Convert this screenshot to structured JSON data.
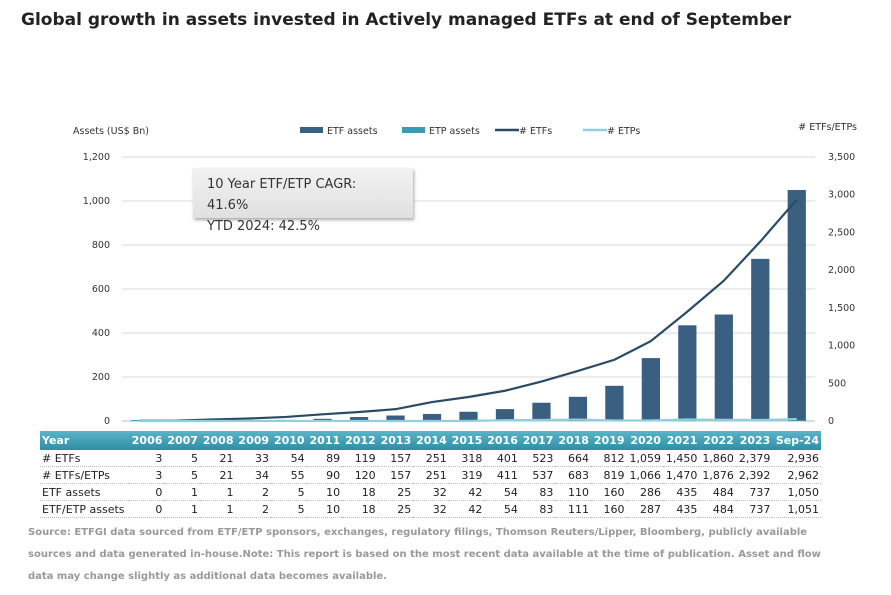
{
  "title": "Global growth in assets invested in Actively managed ETFs at end of September",
  "annotation": {
    "line1": "10 Year ETF/ETP CAGR: 41.6%",
    "line2": "YTD 2024: 42.5%"
  },
  "source": "Source: ETFGI data sourced from ETF/ETP sponsors, exchanges, regulatory filings, Thomson Reuters/Lipper, Bloomberg, publicly available sources and data generated in-house.Note: This report is based on the most recent data available at the time of publication. Asset and flow data may change slightly as additional data becomes available.",
  "chart_data": {
    "type": "bar",
    "ylabel": "Assets (US$ Bn)",
    "y2label": "# ETFs/ETPs",
    "ylim": [
      0,
      1200
    ],
    "y2lim": [
      0,
      3500
    ],
    "yticks": [
      "0",
      "200",
      "400",
      "600",
      "800",
      "1,000",
      "1,200"
    ],
    "y2ticks": [
      "0",
      "500",
      "1,000",
      "1,500",
      "2,000",
      "2,500",
      "3,000",
      "3,500"
    ],
    "legend_position": "top",
    "categories": [
      "2006",
      "2007",
      "2008",
      "2009",
      "2010",
      "2011",
      "2012",
      "2013",
      "2014",
      "2015",
      "2016",
      "2017",
      "2018",
      "2019",
      "2020",
      "2021",
      "2022",
      "2023",
      "Sep-24"
    ],
    "series": [
      {
        "name": "ETF assets",
        "kind": "bar",
        "axis": "left",
        "color": "#3b5f80",
        "values": [
          0,
          1,
          1,
          2,
          5,
          10,
          18,
          25,
          32,
          42,
          54,
          83,
          110,
          160,
          286,
          435,
          484,
          737,
          1050
        ]
      },
      {
        "name": "ETP assets",
        "kind": "bar",
        "axis": "left",
        "color": "#3a9bb3",
        "values": [
          0,
          0,
          0,
          0,
          0,
          0,
          0,
          0,
          0,
          0,
          0,
          0,
          1,
          0,
          1,
          0,
          0,
          0,
          1
        ]
      },
      {
        "name": "# ETFs",
        "kind": "line",
        "axis": "right",
        "color": "#2b4a66",
        "values": [
          3,
          5,
          21,
          33,
          54,
          89,
          119,
          157,
          251,
          318,
          401,
          523,
          664,
          812,
          1059,
          1450,
          1860,
          2379,
          2936
        ]
      },
      {
        "name": "# ETPs",
        "kind": "line",
        "axis": "right",
        "color": "#8fd0de",
        "values": [
          0,
          0,
          0,
          1,
          1,
          1,
          1,
          0,
          0,
          1,
          10,
          14,
          19,
          7,
          7,
          20,
          16,
          13,
          26
        ]
      }
    ],
    "table": {
      "header": "Year",
      "rows": [
        {
          "label": "# ETFs",
          "values": [
            "3",
            "5",
            "21",
            "33",
            "54",
            "89",
            "119",
            "157",
            "251",
            "318",
            "401",
            "523",
            "664",
            "812",
            "1,059",
            "1,450",
            "1,860",
            "2,379",
            "2,936"
          ]
        },
        {
          "label": "# ETFs/ETPs",
          "values": [
            "3",
            "5",
            "21",
            "34",
            "55",
            "90",
            "120",
            "157",
            "251",
            "319",
            "411",
            "537",
            "683",
            "819",
            "1,066",
            "1,470",
            "1,876",
            "2,392",
            "2,962"
          ]
        },
        {
          "label": "ETF assets",
          "values": [
            "0",
            "1",
            "1",
            "2",
            "5",
            "10",
            "18",
            "25",
            "32",
            "42",
            "54",
            "83",
            "110",
            "160",
            "286",
            "435",
            "484",
            "737",
            "1,050"
          ]
        },
        {
          "label": "ETF/ETP assets",
          "values": [
            "0",
            "1",
            "1",
            "2",
            "5",
            "10",
            "18",
            "25",
            "32",
            "42",
            "54",
            "83",
            "111",
            "160",
            "287",
            "435",
            "484",
            "737",
            "1,051"
          ]
        }
      ]
    }
  }
}
